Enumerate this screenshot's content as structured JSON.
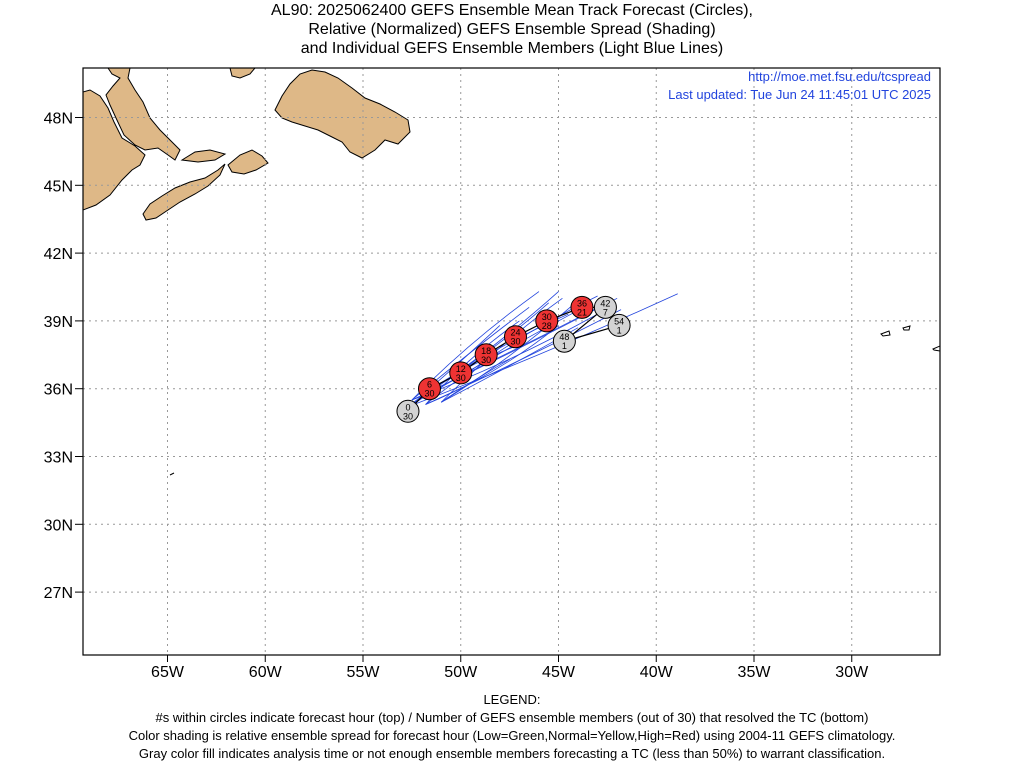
{
  "title": {
    "line1": "AL90: 2025062400 GEFS Ensemble Mean Track Forecast (Circles),",
    "line2": "Relative (Normalized) GEFS Ensemble Spread (Shading)",
    "line3": "and Individual GEFS Ensemble Members (Light Blue Lines)"
  },
  "info": {
    "url": "http://moe.met.fsu.edu/tcspread",
    "updated": "Last updated: Tue Jun 24 11:45:01 UTC 2025"
  },
  "axes": {
    "y_labels": [
      "48N",
      "45N",
      "42N",
      "39N",
      "36N",
      "33N",
      "30N",
      "27N"
    ],
    "x_labels": [
      "65W",
      "60W",
      "55W",
      "50W",
      "45W",
      "40W",
      "35W",
      "30W"
    ]
  },
  "colors": {
    "land": "#deb887",
    "high_spread": "#ee3333",
    "gray_fill": "#d3d3d3",
    "member_lines": "#2244dd",
    "grid": "#999999"
  },
  "track_points": [
    {
      "hour": "0",
      "members": "30",
      "lon": -52.7,
      "lat": 35.0,
      "class": "gray"
    },
    {
      "hour": "6",
      "members": "30",
      "lon": -51.6,
      "lat": 36.0,
      "class": "high"
    },
    {
      "hour": "12",
      "members": "30",
      "lon": -50.0,
      "lat": 36.7,
      "class": "high"
    },
    {
      "hour": "18",
      "members": "30",
      "lon": -48.7,
      "lat": 37.5,
      "class": "high"
    },
    {
      "hour": "24",
      "members": "30",
      "lon": -47.2,
      "lat": 38.3,
      "class": "high"
    },
    {
      "hour": "30",
      "members": "28",
      "lon": -45.6,
      "lat": 39.0,
      "class": "high"
    },
    {
      "hour": "36",
      "members": "21",
      "lon": -43.8,
      "lat": 39.6,
      "class": "high"
    },
    {
      "hour": "42",
      "members": "7",
      "lon": -42.6,
      "lat": 39.6,
      "class": "gray"
    },
    {
      "hour": "48",
      "members": "1",
      "lon": -44.7,
      "lat": 38.1,
      "class": "gray"
    },
    {
      "hour": "54",
      "members": "1",
      "lon": -41.9,
      "lat": 38.8,
      "class": "gray"
    }
  ],
  "legend": {
    "heading": "LEGEND:",
    "line1": "#s within circles indicate forecast hour (top) / Number of GEFS ensemble members (out of 30) that resolved the TC (bottom)",
    "line2": "Color shading is relative ensemble spread for forecast hour (Low=Green,Normal=Yellow,High=Red) using 2004-11 GEFS climatology.",
    "line3": "Gray color fill indicates analysis time or not enough ensemble members forecasting a TC (less than 50%) to warrant classification."
  }
}
